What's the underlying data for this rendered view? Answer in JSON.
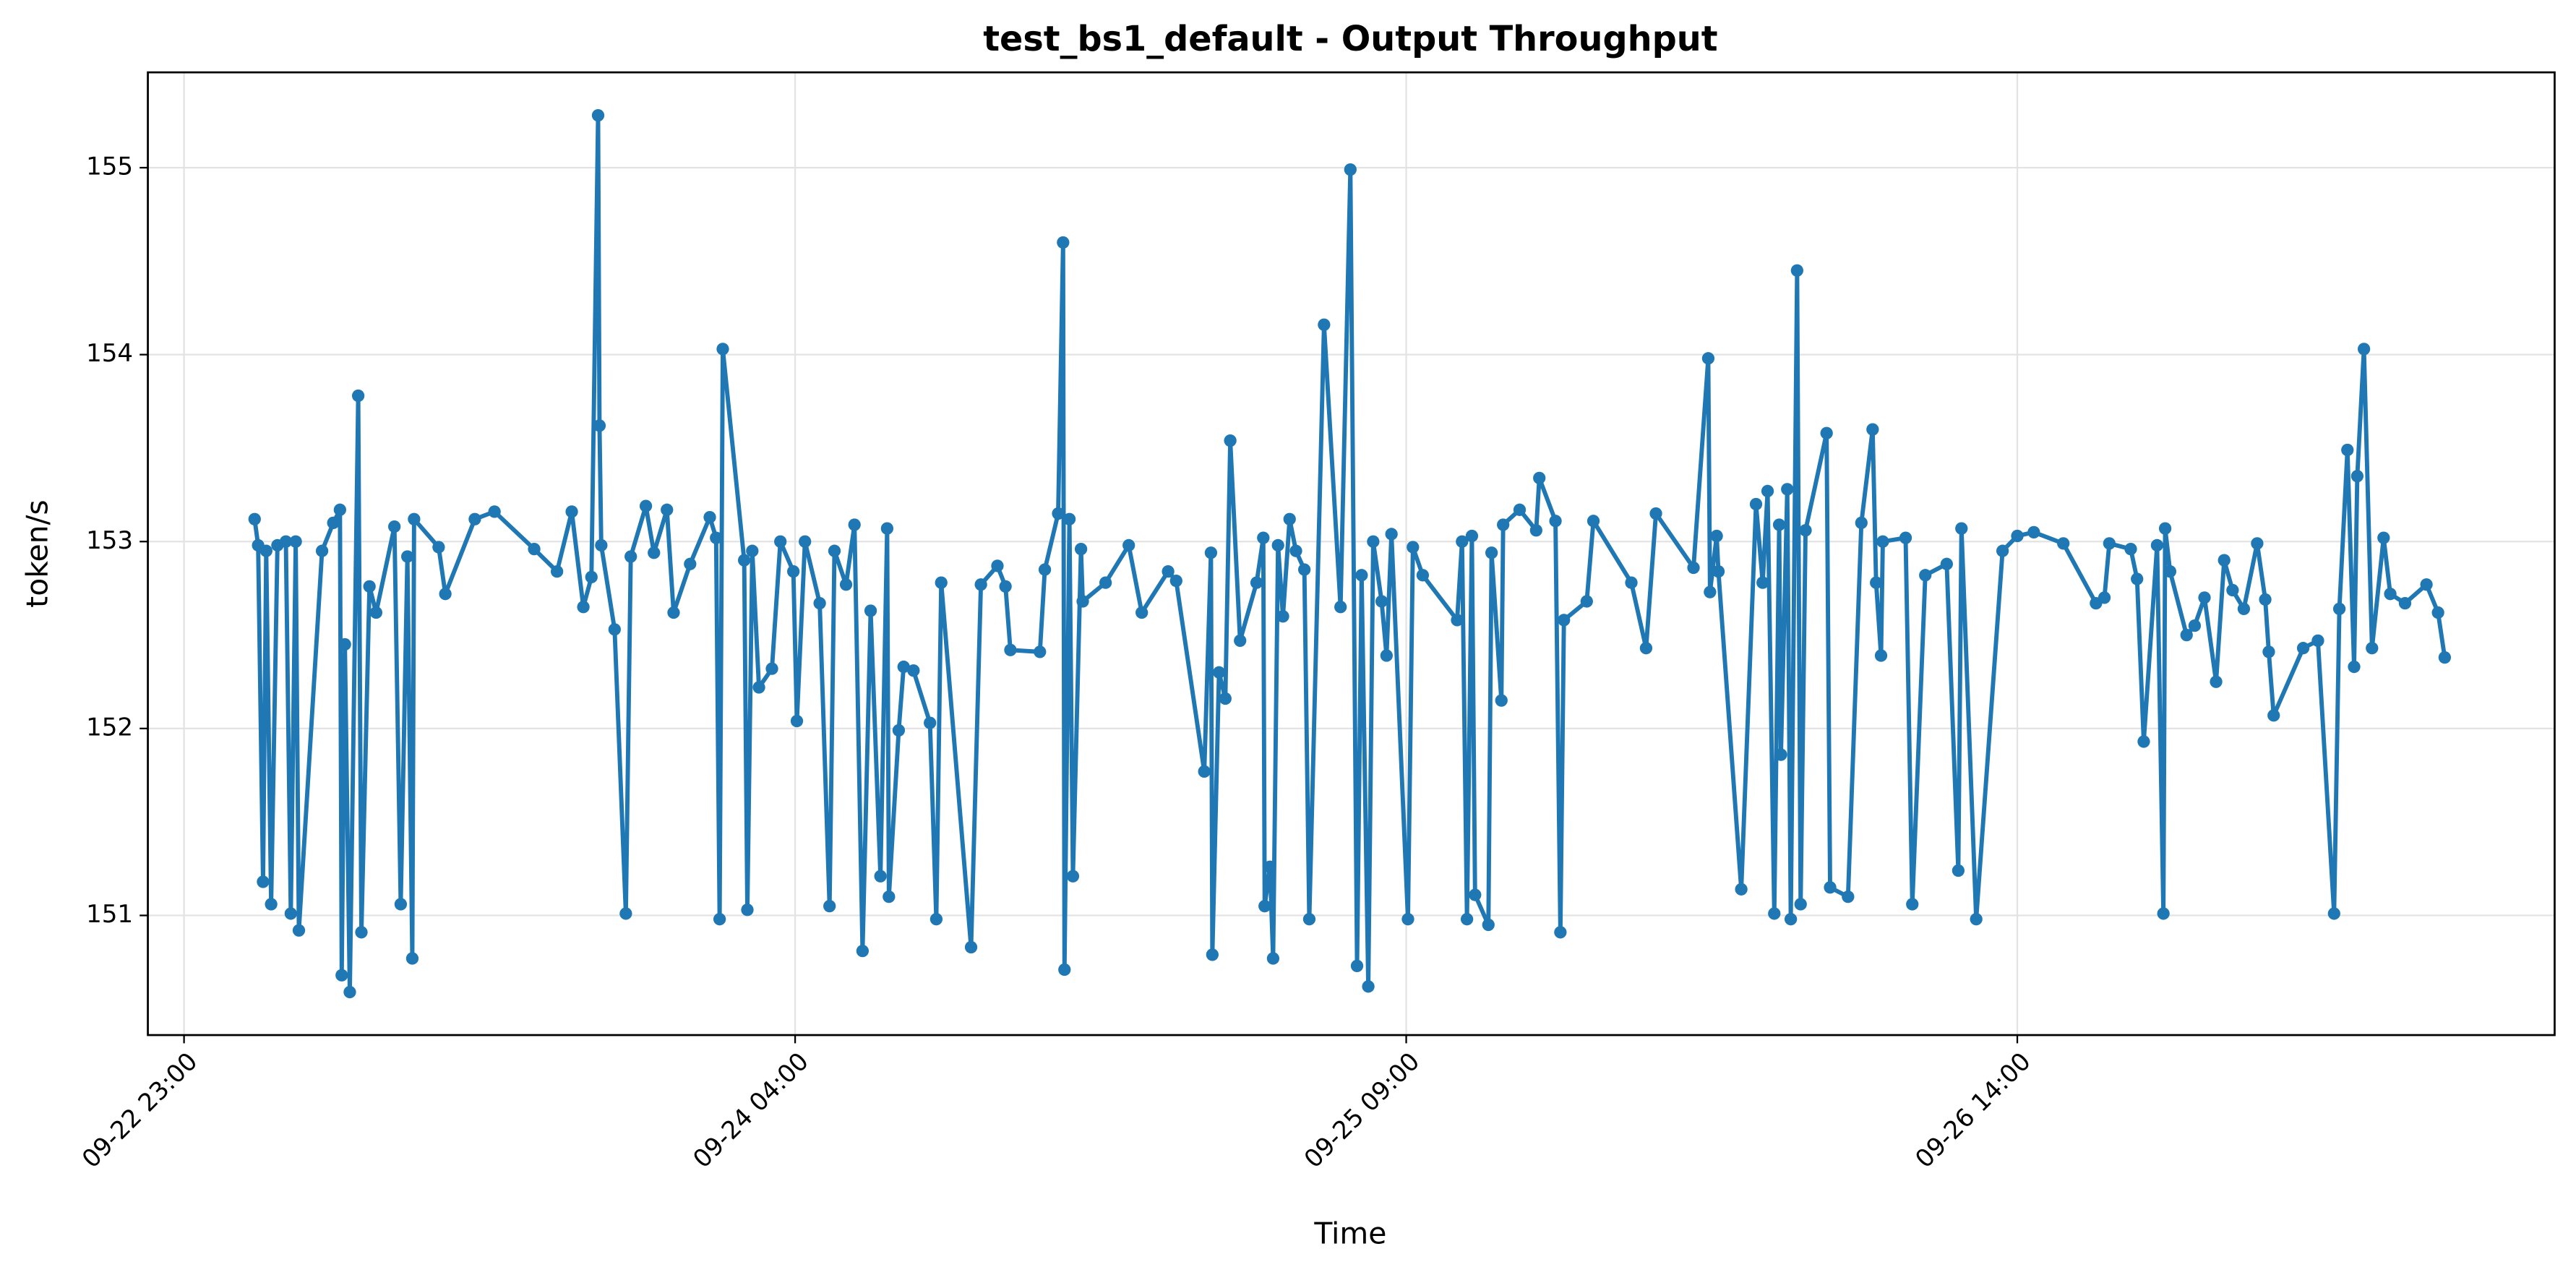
{
  "chart_data": {
    "type": "line",
    "title": "test_bs1_default - Output Throughput",
    "x_label": "Time",
    "y_label": "token/s",
    "color": "#1f77b4",
    "grid": true,
    "xlim": [
      "09-22 21:17",
      "09-27 15:30"
    ],
    "xticks": [
      "09-22 23:00",
      "09-24 04:00",
      "09-25 09:00",
      "09-26 14:00"
    ],
    "ylim": [
      150.36,
      155.51
    ],
    "yticks": [
      151,
      152,
      153,
      154,
      155
    ],
    "x": [
      "09-23 02:21",
      "09-23 02:31",
      "09-23 02:45",
      "09-23 02:54",
      "09-23 03:08",
      "09-23 03:26",
      "09-23 03:50",
      "09-23 04:04",
      "09-23 04:18",
      "09-23 04:27",
      "09-23 05:33",
      "09-23 06:05",
      "09-23 06:24",
      "09-23 06:29",
      "09-23 06:38",
      "09-23 06:52",
      "09-23 07:16",
      "09-23 07:25",
      "09-23 07:48",
      "09-23 08:07",
      "09-23 08:59",
      "09-23 09:17",
      "09-23 09:36",
      "09-23 09:50",
      "09-23 09:55",
      "09-23 11:05",
      "09-23 11:24",
      "09-23 12:48",
      "09-23 13:44",
      "09-23 15:37",
      "09-23 16:42",
      "09-23 17:24",
      "09-23 17:57",
      "09-23 18:20",
      "09-23 18:39",
      "09-23 18:43",
      "09-23 18:48",
      "09-23 19:26",
      "09-23 19:58",
      "09-23 20:12",
      "09-23 20:55",
      "09-23 21:18",
      "09-23 21:55",
      "09-23 22:14",
      "09-23 23:01",
      "09-23 23:57",
      "09-24 00:15",
      "09-24 00:25",
      "09-24 00:34",
      "09-24 01:35",
      "09-24 01:44",
      "09-24 01:58",
      "09-24 02:17",
      "09-24 02:54",
      "09-24 03:18",
      "09-24 03:55",
      "09-24 04:05",
      "09-24 04:28",
      "09-24 05:10",
      "09-24 05:38",
      "09-24 05:52",
      "09-24 06:25",
      "09-24 06:49",
      "09-24 07:12",
      "09-24 07:35",
      "09-24 08:03",
      "09-24 08:22",
      "09-24 08:27",
      "09-24 08:55",
      "09-24 09:09",
      "09-24 09:37",
      "09-24 10:24",
      "09-24 10:42",
      "09-24 10:56",
      "09-24 12:21",
      "09-24 12:49",
      "09-24 13:36",
      "09-24 13:59",
      "09-24 14:13",
      "09-24 15:37",
      "09-24 15:51",
      "09-24 16:29",
      "09-24 16:43",
      "09-24 16:47",
      "09-24 17:01",
      "09-24 17:11",
      "09-24 17:34",
      "09-24 17:39",
      "09-24 18:44",
      "09-24 19:50",
      "09-24 20:27",
      "09-24 21:42",
      "09-24 22:05",
      "09-24 23:25",
      "09-24 23:44",
      "09-24 23:48",
      "09-25 00:07",
      "09-25 00:25",
      "09-25 00:39",
      "09-25 01:07",
      "09-25 01:54",
      "09-25 02:13",
      "09-25 02:17",
      "09-25 02:32",
      "09-25 02:41",
      "09-25 02:55",
      "09-25 03:09",
      "09-25 03:28",
      "09-25 03:46",
      "09-25 04:10",
      "09-25 04:24",
      "09-25 05:06",
      "09-25 05:53",
      "09-25 06:21",
      "09-25 06:40",
      "09-25 06:53",
      "09-25 07:12",
      "09-25 07:26",
      "09-25 07:50",
      "09-25 08:04",
      "09-25 08:18",
      "09-25 09:05",
      "09-25 09:19",
      "09-25 09:47",
      "09-25 11:25",
      "09-25 11:39",
      "09-25 11:53",
      "09-25 12:07",
      "09-25 12:16",
      "09-25 12:54",
      "09-25 13:03",
      "09-25 13:31",
      "09-25 13:36",
      "09-25 14:23",
      "09-25 15:10",
      "09-25 15:19",
      "09-25 16:05",
      "09-25 16:19",
      "09-25 16:29",
      "09-25 17:34",
      "09-25 17:53",
      "09-25 19:41",
      "09-25 20:23",
      "09-25 20:51",
      "09-25 22:38",
      "09-25 23:20",
      "09-25 23:25",
      "09-25 23:44",
      "09-25 23:49",
      "09-26 00:54",
      "09-26 01:36",
      "09-26 01:55",
      "09-26 02:09",
      "09-26 02:28",
      "09-26 02:42",
      "09-26 02:47",
      "09-26 03:05",
      "09-26 03:15",
      "09-26 03:33",
      "09-26 03:43",
      "09-26 03:57",
      "09-26 04:57",
      "09-26 05:07",
      "09-26 05:58",
      "09-26 06:36",
      "09-26 07:08",
      "09-26 07:18",
      "09-26 07:32",
      "09-26 07:37",
      "09-26 08:42",
      "09-26 09:01",
      "09-26 09:38",
      "09-26 10:39",
      "09-26 11:12",
      "09-26 11:21",
      "09-26 12:03",
      "09-26 13:18",
      "09-26 14:00",
      "09-26 14:47",
      "09-26 16:11",
      "09-26 17:44",
      "09-26 18:08",
      "09-26 18:22",
      "09-26 19:23",
      "09-26 19:41",
      "09-26 20:00",
      "09-26 20:38",
      "09-26 20:56",
      "09-26 21:01",
      "09-26 21:15",
      "09-26 22:02",
      "09-26 22:25",
      "09-26 22:53",
      "09-26 23:26",
      "09-26 23:49",
      "09-27 00:13",
      "09-27 00:45",
      "09-27 01:23",
      "09-27 01:46",
      "09-27 01:56",
      "09-27 02:10",
      "09-27 03:34",
      "09-27 04:16",
      "09-27 05:02",
      "09-27 05:17",
      "09-27 05:40",
      "09-27 05:59",
      "09-27 06:08",
      "09-27 06:27",
      "09-27 06:50",
      "09-27 07:23",
      "09-27 07:42",
      "09-27 08:24",
      "09-27 09:25",
      "09-27 09:58",
      "09-27 10:17"
    ],
    "values": [
      153.12,
      152.98,
      151.18,
      152.95,
      151.06,
      152.98,
      153.0,
      151.01,
      153.0,
      150.92,
      152.95,
      153.1,
      153.17,
      150.68,
      152.45,
      150.59,
      153.78,
      150.91,
      152.76,
      152.62,
      153.08,
      151.06,
      152.92,
      150.77,
      153.12,
      152.97,
      152.72,
      153.12,
      153.16,
      152.96,
      152.84,
      153.16,
      152.65,
      152.81,
      155.28,
      153.62,
      152.98,
      152.53,
      151.01,
      152.92,
      153.19,
      152.94,
      153.17,
      152.62,
      152.88,
      153.13,
      153.02,
      150.98,
      154.03,
      152.9,
      151.03,
      152.95,
      152.22,
      152.32,
      153.0,
      152.84,
      152.04,
      153.0,
      152.67,
      151.05,
      152.95,
      152.77,
      153.09,
      150.81,
      152.63,
      151.21,
      153.07,
      151.1,
      151.99,
      152.33,
      152.31,
      152.03,
      150.98,
      152.78,
      150.83,
      152.77,
      152.87,
      152.76,
      152.42,
      152.41,
      152.85,
      153.15,
      154.6,
      150.71,
      153.12,
      151.21,
      152.96,
      152.68,
      152.78,
      152.98,
      152.62,
      152.84,
      152.79,
      151.77,
      152.94,
      150.79,
      152.3,
      152.16,
      153.54,
      152.47,
      152.78,
      153.02,
      151.05,
      151.26,
      150.77,
      152.98,
      152.6,
      153.12,
      152.95,
      152.85,
      150.98,
      154.16,
      152.65,
      154.99,
      150.73,
      152.82,
      150.62,
      153.0,
      152.68,
      152.39,
      153.04,
      150.98,
      152.97,
      152.82,
      152.58,
      153.0,
      150.98,
      153.03,
      151.11,
      150.95,
      152.94,
      152.15,
      153.09,
      153.17,
      153.06,
      153.34,
      153.11,
      150.91,
      152.58,
      152.68,
      153.11,
      152.78,
      152.43,
      153.15,
      152.86,
      153.98,
      152.73,
      153.03,
      152.84,
      151.14,
      153.2,
      152.78,
      153.27,
      151.01,
      153.09,
      151.86,
      153.28,
      150.98,
      154.45,
      151.06,
      153.06,
      153.58,
      151.15,
      151.1,
      153.1,
      153.6,
      152.78,
      152.39,
      153.0,
      153.02,
      151.06,
      152.82,
      152.88,
      151.24,
      153.07,
      150.98,
      152.95,
      153.03,
      153.05,
      152.99,
      152.67,
      152.7,
      152.99,
      152.96,
      152.8,
      151.93,
      152.98,
      151.01,
      153.07,
      152.84,
      152.5,
      152.55,
      152.7,
      152.25,
      152.9,
      152.74,
      152.64,
      152.99,
      152.69,
      152.41,
      152.07,
      152.43,
      152.47,
      151.01,
      152.64,
      153.49,
      152.33,
      153.35,
      154.03,
      152.43,
      153.02,
      152.72,
      152.67,
      152.77,
      152.62,
      152.38
    ]
  }
}
